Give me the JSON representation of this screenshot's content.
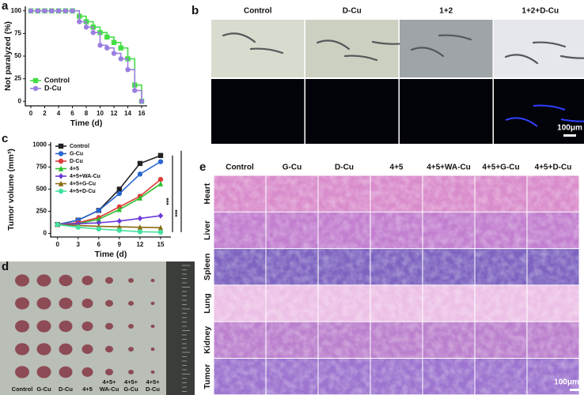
{
  "chart_data": [
    {
      "type": "line",
      "step": true,
      "panel_label": "a",
      "xlabel": "Time (d)",
      "ylabel": "Not paralyzed (%)",
      "x": [
        0,
        1,
        2,
        3,
        4,
        5,
        6,
        7,
        8,
        9,
        10,
        11,
        12,
        13,
        14,
        15,
        16
      ],
      "xlim": [
        -0.8,
        16.8
      ],
      "xticks": [
        0,
        2,
        4,
        6,
        8,
        10,
        12,
        14,
        16
      ],
      "ylim": [
        -5,
        105
      ],
      "yticks": [
        0,
        25,
        50,
        75,
        100
      ],
      "legend": "lower left",
      "series": [
        {
          "name": "Control",
          "color": "#44dd44",
          "marker": "square",
          "values": [
            100,
            100,
            100,
            100,
            100,
            100,
            100,
            94,
            88,
            82,
            76,
            71,
            65,
            59,
            47,
            18,
            0
          ]
        },
        {
          "name": "D-Cu",
          "color": "#9b7fe0",
          "marker": "circle",
          "values": [
            100,
            100,
            100,
            100,
            100,
            100,
            100,
            88,
            82,
            76,
            62,
            59,
            53,
            47,
            35,
            12,
            0
          ]
        }
      ]
    },
    {
      "type": "line",
      "step": false,
      "panel_label": "c",
      "xlabel": "Time (d)",
      "ylabel": "Tumor volume (mm³)",
      "x": [
        0,
        3,
        6,
        9,
        12,
        15
      ],
      "xlim": [
        -1,
        16.5
      ],
      "xticks": [
        0,
        3,
        6,
        9,
        12,
        15
      ],
      "ylim": [
        -40,
        1030
      ],
      "yticks": [
        0,
        250,
        500,
        750,
        1000
      ],
      "legend": "upper left",
      "annotations": [
        "***",
        "***"
      ],
      "series": [
        {
          "name": "Control",
          "color": "#222222",
          "marker": "square",
          "values": [
            100,
            150,
            260,
            500,
            790,
            880
          ]
        },
        {
          "name": "G-Cu",
          "color": "#2a66d0",
          "marker": "circle",
          "values": [
            100,
            150,
            260,
            450,
            670,
            810
          ]
        },
        {
          "name": "D-Cu",
          "color": "#e03a3a",
          "marker": "circle",
          "values": [
            100,
            120,
            180,
            300,
            420,
            610
          ]
        },
        {
          "name": "4+5",
          "color": "#2ec02e",
          "marker": "triangle",
          "values": [
            100,
            110,
            160,
            270,
            400,
            560
          ]
        },
        {
          "name": "4+5+WA-Cu",
          "color": "#6a3ad8",
          "marker": "diamond",
          "values": [
            100,
            110,
            120,
            140,
            170,
            200
          ]
        },
        {
          "name": "4+5+G-Cu",
          "color": "#8a6a10",
          "marker": "triangle",
          "values": [
            100,
            90,
            80,
            75,
            70,
            65
          ]
        },
        {
          "name": "4+5+D-Cu",
          "color": "#44e0a0",
          "marker": "circle",
          "values": [
            100,
            70,
            50,
            35,
            20,
            15
          ]
        }
      ]
    }
  ],
  "panel_b": {
    "panel_label": "b",
    "columns": [
      "Control",
      "D-Cu",
      "1+2",
      "1+2+D-Cu"
    ],
    "scale_bar": "100μm"
  },
  "panel_d": {
    "panel_label": "d",
    "labels": [
      [
        "Control"
      ],
      [
        "G-Cu"
      ],
      [
        "D-Cu"
      ],
      [
        "4+5"
      ],
      [
        "4+5+",
        "WA-Cu"
      ],
      [
        "4+5+",
        "G-Cu"
      ],
      [
        "4+5+",
        "D-Cu"
      ]
    ]
  },
  "panel_e": {
    "panel_label": "e",
    "columns": [
      "Control",
      "G-Cu",
      "D-Cu",
      "4+5",
      "4+5+WA-Cu",
      "4+5+G-Cu",
      "4+5+D-Cu"
    ],
    "rows": [
      "Heart",
      "Liver",
      "Spleen",
      "Lung",
      "Kidney",
      "Tumor"
    ],
    "scale_bar": "100μm"
  }
}
